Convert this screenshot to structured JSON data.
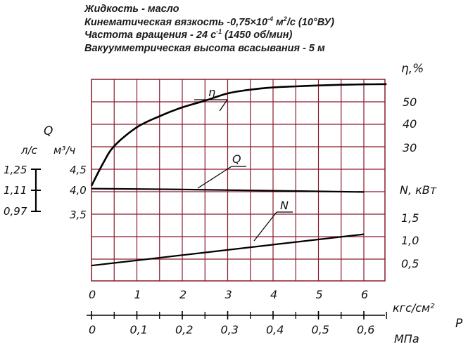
{
  "header": {
    "line1": "Жидкость - масло",
    "line2_main": "Кинематическая вязкость -0,75×10",
    "line2_exp1": "-4",
    "line2_mid": " м",
    "line2_exp2": "2",
    "line2_tail": "/с (10°ВУ)",
    "line3_main": "Частота вращения - 24 с",
    "line3_exp": "-1",
    "line3_tail": " (1450 об/мин)",
    "line4": "Вакуумметрическая высота всасывания - 5 м"
  },
  "colors": {
    "grid": "#8b1a2e",
    "curve": "#000000",
    "text": "#111111"
  },
  "chart_data": {
    "type": "line",
    "x_axis_primary": {
      "label": "кгс/см²",
      "ticks": [
        "0",
        "1",
        "2",
        "3",
        "4",
        "5",
        "6"
      ],
      "range": [
        0,
        6.5
      ]
    },
    "x_axis_secondary": {
      "label": "МПа",
      "ticks": [
        "0",
        "0,1",
        "0,2",
        "0,3",
        "0,4",
        "0,5",
        "0,6"
      ]
    },
    "x_group_label": "P",
    "left_axis": {
      "title": "Q",
      "unit_ls": "л/с",
      "unit_m3": "м³/ч",
      "ls_ticks": [
        "1,25",
        "1,11",
        "0,97"
      ],
      "m3_ticks": [
        "4,5",
        "4,0",
        "3,5"
      ]
    },
    "right_axis_eta": {
      "label": "η,%",
      "ticks": [
        "50",
        "40",
        "30"
      ]
    },
    "right_axis_N": {
      "label": "N, кВт",
      "ticks": [
        "1,5",
        "1,0",
        "0,5"
      ]
    },
    "series": [
      {
        "name": "η",
        "x": [
          0,
          0.25,
          0.5,
          1,
          1.5,
          2,
          2.5,
          3,
          3.5,
          4,
          4.5,
          5,
          5.5,
          6,
          6.5
        ],
        "eta": [
          12,
          22,
          30,
          38.5,
          43.5,
          47.5,
          50.5,
          53.8,
          55.5,
          56.5,
          57,
          57.4,
          57.7,
          57.9,
          58
        ]
      },
      {
        "name": "Q",
        "x": [
          0,
          2,
          4,
          6
        ],
        "m3h": [
          4.04,
          4.02,
          3.99,
          3.96
        ]
      },
      {
        "name": "N",
        "x": [
          0,
          1,
          2,
          3,
          4,
          5,
          6
        ],
        "kw": [
          0.4,
          0.52,
          0.64,
          0.76,
          0.88,
          1.0,
          1.12
        ]
      }
    ]
  }
}
